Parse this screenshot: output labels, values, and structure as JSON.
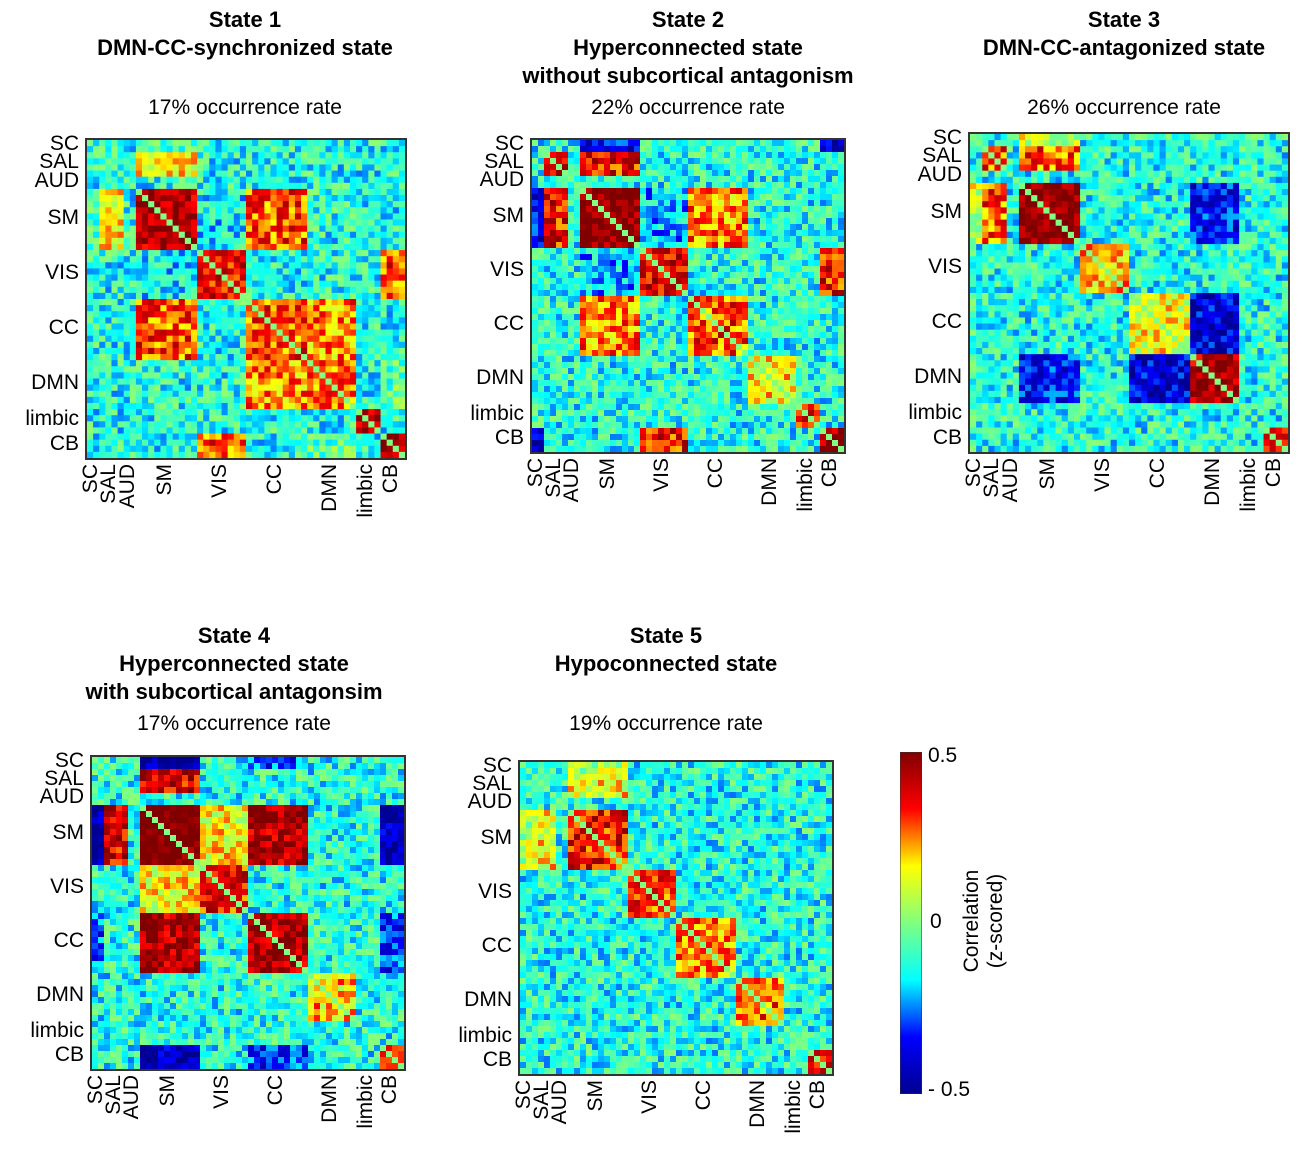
{
  "panels": [
    {
      "title_lines": [
        "State 1",
        "DMN-CC-synchronized state"
      ],
      "rate": "17% occurrence rate"
    },
    {
      "title_lines": [
        "State 2",
        "Hyperconnected  state",
        "without subcortical antagonism"
      ],
      "rate": "22% occurrence rate"
    },
    {
      "title_lines": [
        "State 3",
        "DMN-CC-antagonized state"
      ],
      "rate": "26% occurrence rate"
    },
    {
      "title_lines": [
        "State 4",
        "Hyperconnected  state",
        "with subcortical antagonsim"
      ],
      "rate": "17% occurrence rate"
    },
    {
      "title_lines": [
        "State 5",
        "Hypoconnected state"
      ],
      "rate": "19% occurrence rate"
    }
  ],
  "networks": [
    "SC",
    "SAL",
    "AUD",
    "SM",
    "VIS",
    "CC",
    "DMN",
    "limbic",
    "CB"
  ],
  "colorbar": {
    "label_lines": [
      "Correlation",
      "(z-scored)"
    ],
    "ticks": [
      "0.5",
      "0",
      "- 0.5"
    ],
    "colormap": [
      "#00008f",
      "#0000ff",
      "#00ffff",
      "#80ff80",
      "#ffff00",
      "#ff0000",
      "#800000"
    ]
  },
  "chart_data": {
    "type": "heatmap",
    "value_range": [
      -0.5,
      0.5
    ],
    "network_sizes": {
      "SC": 2,
      "SAL": 4,
      "AUD": 2,
      "SM": 10,
      "VIS": 8,
      "CC": 10,
      "DMN": 8,
      "limbic": 4,
      "CB": 4
    },
    "states": [
      {
        "state": "State 1",
        "blocks": [
          [
            "SM",
            "SM",
            0.45
          ],
          [
            "VIS",
            "VIS",
            0.35
          ],
          [
            "CC",
            "CC",
            0.3
          ],
          [
            "DMN",
            "DMN",
            0.3
          ],
          [
            "CB",
            "CB",
            0.45
          ],
          [
            "limbic",
            "limbic",
            0.4
          ],
          [
            "SM",
            "CC",
            0.3
          ],
          [
            "CC",
            "DMN",
            0.25
          ],
          [
            "SM",
            "SAL",
            0.15
          ],
          [
            "VIS",
            "CB",
            0.3
          ],
          [
            "SC",
            "SM",
            -0.05
          ],
          [
            "VIS",
            "SM",
            -0.15
          ],
          [
            "DMN",
            "CB",
            -0.05
          ]
        ]
      },
      {
        "state": "State 2",
        "blocks": [
          [
            "SM",
            "SM",
            0.5
          ],
          [
            "SAL",
            "SM",
            0.35
          ],
          [
            "SAL",
            "SAL",
            0.35
          ],
          [
            "VIS",
            "VIS",
            0.4
          ],
          [
            "CC",
            "CC",
            0.3
          ],
          [
            "DMN",
            "DMN",
            0.15
          ],
          [
            "limbic",
            "limbic",
            0.35
          ],
          [
            "CB",
            "CB",
            0.45
          ],
          [
            "SM",
            "CC",
            0.25
          ],
          [
            "VIS",
            "CB",
            0.35
          ],
          [
            "SC",
            "SM",
            -0.35
          ],
          [
            "SC",
            "CB",
            -0.4
          ],
          [
            "SM",
            "VIS",
            -0.2
          ]
        ]
      },
      {
        "state": "State 3",
        "blocks": [
          [
            "SM",
            "SM",
            0.5
          ],
          [
            "SAL",
            "SM",
            0.3
          ],
          [
            "SAL",
            "SAL",
            0.3
          ],
          [
            "VIS",
            "VIS",
            0.2
          ],
          [
            "CC",
            "CC",
            0.15
          ],
          [
            "DMN",
            "DMN",
            0.45
          ],
          [
            "CB",
            "CB",
            0.3
          ],
          [
            "CC",
            "DMN",
            -0.4
          ],
          [
            "SM",
            "DMN",
            -0.35
          ],
          [
            "SC",
            "SM",
            0.1
          ]
        ]
      },
      {
        "state": "State 4",
        "blocks": [
          [
            "SM",
            "SM",
            0.55
          ],
          [
            "SAL",
            "SM",
            0.4
          ],
          [
            "SM",
            "CC",
            0.45
          ],
          [
            "VIS",
            "VIS",
            0.35
          ],
          [
            "CC",
            "CC",
            0.45
          ],
          [
            "DMN",
            "DMN",
            0.2
          ],
          [
            "CB",
            "CB",
            0.4
          ],
          [
            "SC",
            "SM",
            -0.45
          ],
          [
            "SC",
            "CC",
            -0.3
          ],
          [
            "CB",
            "SM",
            -0.45
          ],
          [
            "CB",
            "CC",
            -0.3
          ],
          [
            "SM",
            "VIS",
            0.15
          ]
        ]
      },
      {
        "state": "State 5",
        "blocks": [
          [
            "SM",
            "SM",
            0.35
          ],
          [
            "VIS",
            "VIS",
            0.3
          ],
          [
            "CC",
            "CC",
            0.25
          ],
          [
            "DMN",
            "DMN",
            0.3
          ],
          [
            "CB",
            "CB",
            0.35
          ],
          [
            "SAL",
            "SM",
            0.15
          ],
          [
            "SC",
            "SM",
            0.05
          ]
        ]
      }
    ]
  }
}
